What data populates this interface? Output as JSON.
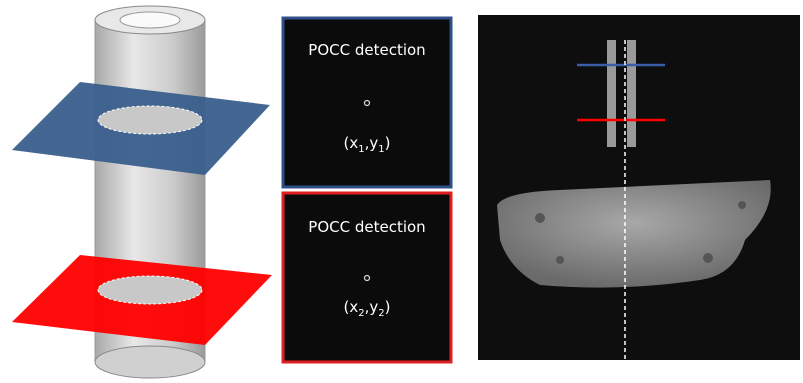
{
  "panels": [
    {
      "title": "POCC detection",
      "coordinate_parts": [
        "(x",
        "1",
        ",y",
        "1",
        ")"
      ]
    },
    {
      "title": "POCC detection",
      "coordinate_parts": [
        "(x",
        "2",
        ",y",
        "2",
        ")"
      ]
    }
  ]
}
